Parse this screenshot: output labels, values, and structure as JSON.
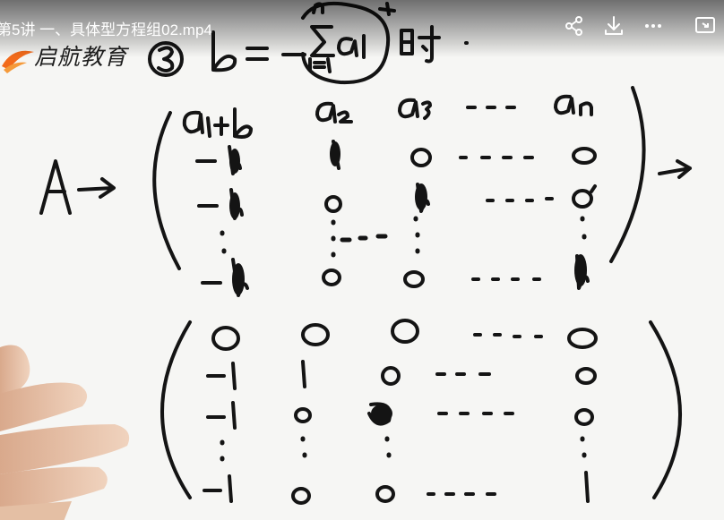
{
  "player": {
    "title": "第5讲 一、具体型方程组02.mp4",
    "controls": [
      "share-icon",
      "download-icon",
      "more-icon",
      "picture-in-picture-icon"
    ]
  },
  "watermark": {
    "brand": "启航教育"
  },
  "board": {
    "case_marker": "③",
    "condition": {
      "lhs": "b",
      "rhs_top": "n",
      "rhs_bottom": "i=1",
      "rhs_term": "aᵢ",
      "suffix": "时"
    },
    "label_A": "A",
    "matrix1": [
      [
        "a₁+b",
        "a₂",
        "a₃",
        "···",
        "aₙ"
      ],
      [
        "-b",
        "b",
        "0",
        "···",
        "0"
      ],
      [
        "-b",
        "0",
        "b",
        "···",
        "0"
      ],
      [
        "⋮",
        "⋮",
        "⋮",
        "",
        "⋮"
      ],
      [
        "-b",
        "0",
        "0",
        "···",
        "b"
      ]
    ],
    "matrix2": [
      [
        "0",
        "0",
        "0",
        "···",
        "0"
      ],
      [
        "-1",
        "1",
        "0",
        "···",
        "0"
      ],
      [
        "-1",
        "0",
        "1",
        "···",
        "0"
      ],
      [
        "⋮",
        "⋮",
        "⋮",
        "",
        "⋮"
      ],
      [
        "-1",
        "0",
        "0",
        "···",
        "1"
      ]
    ]
  },
  "colors": {
    "ink": "#141414",
    "board": "#f6f6f4",
    "logo_orange": "#f26a1b",
    "hand_skin": "#e7c3a8"
  }
}
